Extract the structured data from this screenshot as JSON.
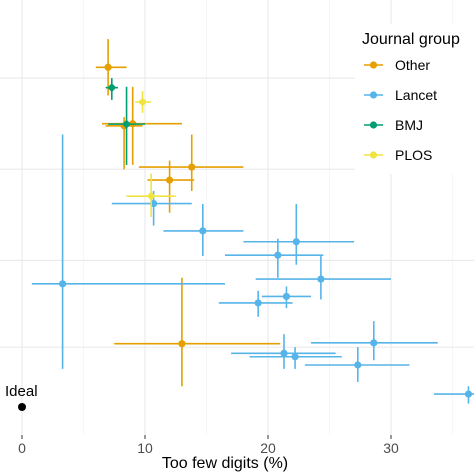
{
  "chart_data": {
    "type": "scatter",
    "title": "",
    "xlabel": "Too few digits (%)",
    "ylabel": "",
    "xlim": [
      -1.5,
      36.5
    ],
    "x_ticks": [
      0,
      10,
      20,
      30
    ],
    "x_tick_labels": [
      "0",
      "10",
      "20",
      "30"
    ],
    "grid": true,
    "legend": {
      "title": "Journal group",
      "placement": "top-right",
      "entries": [
        {
          "name": "Other",
          "color": "#e69f00"
        },
        {
          "name": "Lancet",
          "color": "#56b4e9"
        },
        {
          "name": "BMJ",
          "color": "#009e73"
        },
        {
          "name": "PLOS",
          "color": "#f0e442"
        }
      ]
    },
    "ideal": {
      "label": "Ideal",
      "x": 0,
      "y": 0
    },
    "y_tick_positions": [
      0.82,
      0.61,
      0.4,
      0.2
    ],
    "series": [
      {
        "name": "Other",
        "color": "#e69f00",
        "points": [
          {
            "x": 7.0,
            "y": 0.845,
            "xlo": 6.0,
            "xhi": 8.5,
            "ylo": 0.78,
            "yhi": 0.91
          },
          {
            "x": 9.0,
            "y": 0.715,
            "xlo": 6.5,
            "xhi": 13.0,
            "ylo": 0.62,
            "yhi": 0.8
          },
          {
            "x": 8.3,
            "y": 0.71,
            "xlo": 6.8,
            "xhi": 9.8,
            "ylo": 0.61,
            "yhi": 0.73
          },
          {
            "x": 13.8,
            "y": 0.615,
            "xlo": 9.5,
            "xhi": 18.0,
            "ylo": 0.56,
            "yhi": 0.69
          },
          {
            "x": 12.0,
            "y": 0.585,
            "xlo": 10.2,
            "xhi": 14.0,
            "ylo": 0.51,
            "yhi": 0.63
          },
          {
            "x": 13.0,
            "y": 0.208,
            "xlo": 7.5,
            "xhi": 21.0,
            "ylo": 0.11,
            "yhi": 0.36
          }
        ]
      },
      {
        "name": "Lancet",
        "color": "#56b4e9",
        "points": [
          {
            "x": 3.3,
            "y": 0.346,
            "xlo": 0.8,
            "xhi": 16.5,
            "ylo": 0.15,
            "yhi": 0.69
          },
          {
            "x": 10.7,
            "y": 0.531,
            "xlo": 7.3,
            "xhi": 13.8,
            "ylo": 0.48,
            "yhi": 0.56
          },
          {
            "x": 14.7,
            "y": 0.468,
            "xlo": 11.5,
            "xhi": 18.0,
            "ylo": 0.41,
            "yhi": 0.53
          },
          {
            "x": 22.3,
            "y": 0.443,
            "xlo": 18.0,
            "xhi": 27.0,
            "ylo": 0.39,
            "yhi": 0.53
          },
          {
            "x": 20.8,
            "y": 0.412,
            "xlo": 16.5,
            "xhi": 24.5,
            "ylo": 0.36,
            "yhi": 0.45
          },
          {
            "x": 24.3,
            "y": 0.357,
            "xlo": 19.0,
            "xhi": 30.0,
            "ylo": 0.31,
            "yhi": 0.41
          },
          {
            "x": 21.5,
            "y": 0.317,
            "xlo": 19.5,
            "xhi": 23.5,
            "ylo": 0.29,
            "yhi": 0.34
          },
          {
            "x": 19.2,
            "y": 0.302,
            "xlo": 16.0,
            "xhi": 22.0,
            "ylo": 0.27,
            "yhi": 0.33
          },
          {
            "x": 28.6,
            "y": 0.21,
            "xlo": 23.5,
            "xhi": 33.8,
            "ylo": 0.17,
            "yhi": 0.26
          },
          {
            "x": 21.3,
            "y": 0.186,
            "xlo": 17.0,
            "xhi": 25.5,
            "ylo": 0.15,
            "yhi": 0.23
          },
          {
            "x": 22.2,
            "y": 0.178,
            "xlo": 18.5,
            "xhi": 26.0,
            "ylo": 0.15,
            "yhi": 0.2
          },
          {
            "x": 27.3,
            "y": 0.159,
            "xlo": 23.0,
            "xhi": 31.5,
            "ylo": 0.12,
            "yhi": 0.2
          },
          {
            "x": 36.3,
            "y": 0.092,
            "xlo": 33.5,
            "xhi": 37.0,
            "ylo": 0.07,
            "yhi": 0.11
          }
        ]
      },
      {
        "name": "BMJ",
        "color": "#009e73",
        "points": [
          {
            "x": 7.3,
            "y": 0.798,
            "xlo": 6.8,
            "xhi": 7.8,
            "ylo": 0.77,
            "yhi": 0.82
          },
          {
            "x": 8.5,
            "y": 0.714,
            "xlo": 7.0,
            "xhi": 10.0,
            "ylo": 0.62,
            "yhi": 0.8
          }
        ]
      },
      {
        "name": "PLOS",
        "color": "#f0e442",
        "points": [
          {
            "x": 9.8,
            "y": 0.765,
            "xlo": 9.2,
            "xhi": 10.5,
            "ylo": 0.74,
            "yhi": 0.79
          },
          {
            "x": 10.5,
            "y": 0.548,
            "xlo": 8.5,
            "xhi": 12.5,
            "ylo": 0.5,
            "yhi": 0.6
          }
        ]
      }
    ]
  }
}
